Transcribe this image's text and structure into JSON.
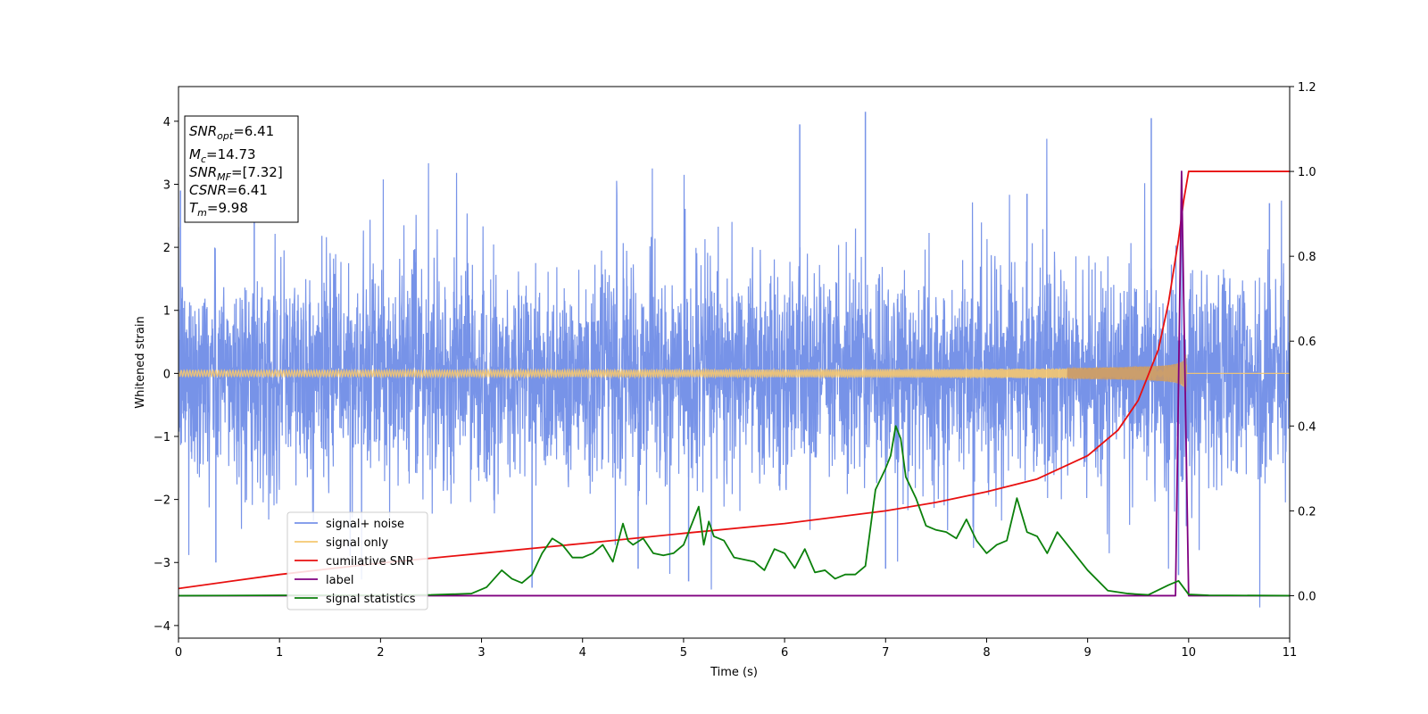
{
  "chart_data": {
    "type": "line",
    "xlabel": "Time (s)",
    "ylabel": "Whitened strain",
    "xlim": [
      0,
      11
    ],
    "ylim": [
      -4.2,
      4.55
    ],
    "y2lim": [
      -0.1,
      1.2
    ],
    "xticks": [
      0,
      1,
      2,
      3,
      4,
      5,
      6,
      7,
      8,
      9,
      10,
      11
    ],
    "yticks": [
      -4,
      -3,
      -2,
      -1,
      0,
      1,
      2,
      3,
      4
    ],
    "y2ticks": [
      0.0,
      0.2,
      0.4,
      0.6,
      0.8,
      1.0,
      1.2
    ],
    "grid": false,
    "legend_position": "lower-left",
    "annotation": {
      "lines": [
        {
          "base": "SNR",
          "sub": "opt",
          "value": "=6.41"
        },
        {
          "base": "M",
          "sub": "c",
          "value": "=14.73"
        },
        {
          "base": "SNR",
          "sub": "MF",
          "value": "=[7.32]"
        },
        {
          "base": "CSNR",
          "sub": "",
          "value": "=6.41"
        },
        {
          "base": "T",
          "sub": "m",
          "value": "=9.98"
        }
      ]
    },
    "series": [
      {
        "name": "signal+ noise",
        "axis": "left",
        "color": "#7793e8",
        "kind": "noise",
        "amplitude_typical": 1.0,
        "peaks": [
          [
            0.02,
            2.9
          ],
          [
            0.37,
            -3.0
          ],
          [
            0.75,
            2.85
          ],
          [
            1.7,
            -2.9
          ],
          [
            3.5,
            -3.4
          ],
          [
            4.55,
            -3.1
          ],
          [
            5.05,
            -3.3
          ],
          [
            6.15,
            3.95
          ],
          [
            6.8,
            4.15
          ],
          [
            7.0,
            -3.1
          ],
          [
            8.4,
            2.85
          ],
          [
            9.63,
            4.05
          ],
          [
            9.9,
            -3.2
          ],
          [
            10.8,
            2.7
          ]
        ]
      },
      {
        "name": "signal only",
        "axis": "left",
        "color": "#f5c870",
        "kind": "chirp",
        "t_merge": 9.98,
        "amplitude_at_merge": 0.5
      },
      {
        "name": "cumilative SNR",
        "axis": "right",
        "color": "#e81010",
        "x": [
          0,
          1,
          2,
          3,
          4,
          5,
          6,
          7,
          7.5,
          8,
          8.5,
          9,
          9.3,
          9.5,
          9.7,
          9.8,
          9.9,
          9.95,
          10.0,
          11
        ],
        "y": [
          0.017,
          0.05,
          0.077,
          0.1,
          0.123,
          0.147,
          0.17,
          0.2,
          0.22,
          0.245,
          0.275,
          0.33,
          0.39,
          0.46,
          0.58,
          0.69,
          0.84,
          0.93,
          1.0,
          1.0
        ]
      },
      {
        "name": "label",
        "axis": "right",
        "color": "#800080",
        "x": [
          0,
          9.87,
          9.93,
          10.0,
          11
        ],
        "y": [
          0.0,
          0.0,
          1.0,
          0.0,
          0.0
        ]
      },
      {
        "name": "signal statistics",
        "axis": "right",
        "color": "#0b800b",
        "x": [
          0,
          1,
          2,
          2.5,
          2.9,
          3.05,
          3.2,
          3.3,
          3.4,
          3.5,
          3.6,
          3.7,
          3.8,
          3.9,
          4.0,
          4.1,
          4.2,
          4.3,
          4.4,
          4.45,
          4.5,
          4.6,
          4.7,
          4.8,
          4.9,
          5.0,
          5.1,
          5.15,
          5.2,
          5.25,
          5.3,
          5.4,
          5.5,
          5.6,
          5.7,
          5.8,
          5.9,
          6.0,
          6.1,
          6.2,
          6.3,
          6.4,
          6.5,
          6.6,
          6.7,
          6.8,
          6.9,
          7.0,
          7.05,
          7.1,
          7.15,
          7.2,
          7.3,
          7.4,
          7.5,
          7.6,
          7.7,
          7.8,
          7.9,
          8.0,
          8.1,
          8.2,
          8.3,
          8.4,
          8.5,
          8.6,
          8.7,
          8.8,
          8.9,
          9.0,
          9.2,
          9.4,
          9.6,
          9.8,
          9.9,
          10.0,
          10.2,
          11
        ],
        "y": [
          0.0,
          0.001,
          0.001,
          0.002,
          0.005,
          0.02,
          0.06,
          0.04,
          0.03,
          0.05,
          0.1,
          0.135,
          0.12,
          0.09,
          0.09,
          0.1,
          0.12,
          0.08,
          0.17,
          0.13,
          0.12,
          0.135,
          0.1,
          0.095,
          0.1,
          0.12,
          0.18,
          0.21,
          0.12,
          0.175,
          0.14,
          0.13,
          0.09,
          0.085,
          0.08,
          0.06,
          0.11,
          0.1,
          0.065,
          0.11,
          0.055,
          0.06,
          0.04,
          0.05,
          0.05,
          0.07,
          0.25,
          0.3,
          0.33,
          0.4,
          0.37,
          0.28,
          0.23,
          0.165,
          0.155,
          0.15,
          0.135,
          0.18,
          0.13,
          0.1,
          0.12,
          0.13,
          0.23,
          0.15,
          0.14,
          0.1,
          0.15,
          0.12,
          0.09,
          0.06,
          0.012,
          0.005,
          0.002,
          0.025,
          0.035,
          0.003,
          0.001,
          0.0
        ]
      }
    ]
  }
}
